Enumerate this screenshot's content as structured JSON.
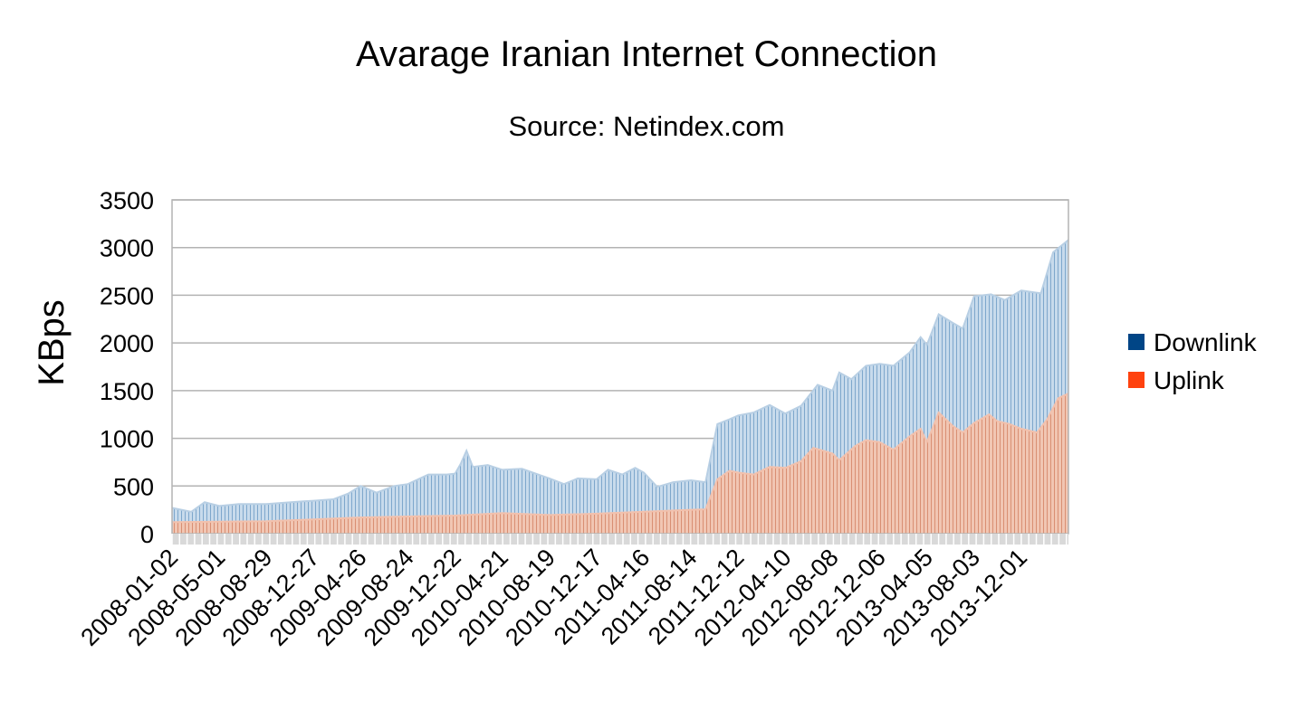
{
  "chart_data": {
    "type": "area",
    "title": "Avarage Iranian Internet Connection",
    "subtitle": "Source: Netindex.com",
    "xlabel": "",
    "ylabel": "KBps",
    "ylim": [
      0,
      3500
    ],
    "yticks": [
      0,
      500,
      1000,
      1500,
      2000,
      2500,
      3000,
      3500
    ],
    "grid": "horizontal",
    "legend_position": "right",
    "x_start": "2008-01-02",
    "x_end": "2014-03-31",
    "x_tick_labels": [
      "2008-01-02",
      "2008-05-01",
      "2008-08-29",
      "2008-12-27",
      "2009-04-26",
      "2009-08-24",
      "2009-12-22",
      "2010-04-21",
      "2010-08-19",
      "2010-12-17",
      "2011-04-16",
      "2011-08-14",
      "2011-12-12",
      "2012-04-10",
      "2012-08-08",
      "2012-12-06",
      "2013-04-05",
      "2013-08-03",
      "2013-12-01"
    ],
    "series": [
      {
        "name": "Downlink",
        "color": "#004586",
        "fill_color": "#b8cfe4",
        "points": [
          [
            "2008-01-02",
            270
          ],
          [
            "2008-02-20",
            230
          ],
          [
            "2008-03-25",
            330
          ],
          [
            "2008-05-01",
            290
          ],
          [
            "2008-06-20",
            310
          ],
          [
            "2008-08-29",
            310
          ],
          [
            "2008-10-15",
            325
          ],
          [
            "2008-12-01",
            340
          ],
          [
            "2008-12-27",
            345
          ],
          [
            "2009-02-15",
            360
          ],
          [
            "2009-03-25",
            420
          ],
          [
            "2009-04-26",
            500
          ],
          [
            "2009-06-05",
            430
          ],
          [
            "2009-07-20",
            500
          ],
          [
            "2009-08-24",
            520
          ],
          [
            "2009-10-15",
            620
          ],
          [
            "2009-12-01",
            620
          ],
          [
            "2009-12-22",
            630
          ],
          [
            "2010-01-05",
            730
          ],
          [
            "2010-01-20",
            870
          ],
          [
            "2010-02-05",
            700
          ],
          [
            "2010-03-15",
            720
          ],
          [
            "2010-04-21",
            670
          ],
          [
            "2010-06-10",
            680
          ],
          [
            "2010-08-19",
            580
          ],
          [
            "2010-09-25",
            520
          ],
          [
            "2010-10-30",
            580
          ],
          [
            "2010-12-17",
            570
          ],
          [
            "2011-01-15",
            670
          ],
          [
            "2011-02-20",
            620
          ],
          [
            "2011-03-25",
            690
          ],
          [
            "2011-04-16",
            640
          ],
          [
            "2011-05-20",
            490
          ],
          [
            "2011-06-30",
            540
          ],
          [
            "2011-08-14",
            560
          ],
          [
            "2011-09-20",
            540
          ],
          [
            "2011-10-20",
            1150
          ],
          [
            "2011-11-20",
            1200
          ],
          [
            "2011-12-12",
            1240
          ],
          [
            "2012-01-20",
            1270
          ],
          [
            "2012-03-01",
            1350
          ],
          [
            "2012-04-10",
            1260
          ],
          [
            "2012-05-20",
            1340
          ],
          [
            "2012-07-01",
            1560
          ],
          [
            "2012-08-08",
            1500
          ],
          [
            "2012-08-25",
            1690
          ],
          [
            "2012-09-25",
            1620
          ],
          [
            "2012-11-01",
            1760
          ],
          [
            "2012-12-06",
            1780
          ],
          [
            "2013-01-10",
            1760
          ],
          [
            "2013-02-20",
            1900
          ],
          [
            "2013-03-20",
            2060
          ],
          [
            "2013-04-05",
            1980
          ],
          [
            "2013-05-05",
            2300
          ],
          [
            "2013-06-10",
            2210
          ],
          [
            "2013-07-05",
            2150
          ],
          [
            "2013-08-03",
            2490
          ],
          [
            "2013-09-15",
            2510
          ],
          [
            "2013-10-20",
            2450
          ],
          [
            "2013-12-01",
            2550
          ],
          [
            "2014-01-20",
            2520
          ],
          [
            "2014-02-20",
            2950
          ],
          [
            "2014-03-31",
            3080
          ]
        ]
      },
      {
        "name": "Uplink",
        "color": "#ff420e",
        "fill_color": "#f2c1ad",
        "points": [
          [
            "2008-01-02",
            120
          ],
          [
            "2008-08-29",
            130
          ],
          [
            "2008-12-27",
            150
          ],
          [
            "2009-04-26",
            170
          ],
          [
            "2009-08-24",
            180
          ],
          [
            "2009-12-22",
            190
          ],
          [
            "2010-04-21",
            215
          ],
          [
            "2010-08-19",
            195
          ],
          [
            "2010-12-17",
            210
          ],
          [
            "2011-04-16",
            230
          ],
          [
            "2011-08-14",
            250
          ],
          [
            "2011-09-20",
            255
          ],
          [
            "2011-10-20",
            570
          ],
          [
            "2011-11-20",
            660
          ],
          [
            "2011-12-12",
            640
          ],
          [
            "2012-01-20",
            620
          ],
          [
            "2012-03-01",
            700
          ],
          [
            "2012-04-10",
            690
          ],
          [
            "2012-05-20",
            760
          ],
          [
            "2012-06-20",
            900
          ],
          [
            "2012-08-08",
            840
          ],
          [
            "2012-08-25",
            770
          ],
          [
            "2012-10-05",
            920
          ],
          [
            "2012-11-01",
            980
          ],
          [
            "2012-12-06",
            960
          ],
          [
            "2013-01-10",
            880
          ],
          [
            "2013-02-20",
            1020
          ],
          [
            "2013-03-20",
            1100
          ],
          [
            "2013-04-05",
            960
          ],
          [
            "2013-05-05",
            1270
          ],
          [
            "2013-06-10",
            1130
          ],
          [
            "2013-07-05",
            1060
          ],
          [
            "2013-08-03",
            1160
          ],
          [
            "2013-09-10",
            1250
          ],
          [
            "2013-10-01",
            1180
          ],
          [
            "2013-11-01",
            1150
          ],
          [
            "2013-12-01",
            1100
          ],
          [
            "2014-01-10",
            1060
          ],
          [
            "2014-02-05",
            1200
          ],
          [
            "2014-03-05",
            1420
          ],
          [
            "2014-03-31",
            1470
          ]
        ]
      }
    ]
  }
}
